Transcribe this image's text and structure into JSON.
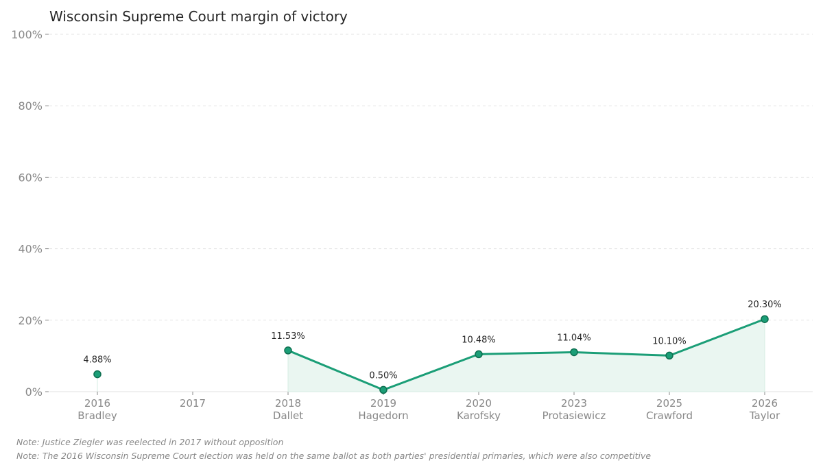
{
  "chart_data": {
    "type": "line",
    "title": "Wisconsin Supreme Court margin of victory",
    "categories": [
      {
        "year": "2016",
        "name": "Bradley"
      },
      {
        "year": "2017",
        "name": ""
      },
      {
        "year": "2018",
        "name": "Dallet"
      },
      {
        "year": "2019",
        "name": "Hagedorn"
      },
      {
        "year": "2020",
        "name": "Karofsky"
      },
      {
        "year": "2023",
        "name": "Protasiewicz"
      },
      {
        "year": "2025",
        "name": "Crawford"
      },
      {
        "year": "2026",
        "name": "Taylor"
      }
    ],
    "values": [
      4.88,
      null,
      11.53,
      0.5,
      10.48,
      11.04,
      10.1,
      20.3
    ],
    "data_labels": [
      "4.88%",
      "",
      "11.53%",
      "0.50%",
      "10.48%",
      "11.04%",
      "10.10%",
      "20.30%"
    ],
    "ylim": [
      0,
      100
    ],
    "yticks": [
      "0%",
      "20%",
      "40%",
      "60%",
      "80%",
      "100%"
    ],
    "grid": true,
    "line_color": "#1b9e77",
    "fill_color": "#eaf6f1",
    "marker_edge_color": "#0d6e4f"
  },
  "notes": [
    "Note: Justice Ziegler was reelected in 2017 without opposition",
    "Note: The 2016 Wisconsin Supreme Court election was held on the same ballot as both parties' presidential primaries, which were also competitive"
  ]
}
